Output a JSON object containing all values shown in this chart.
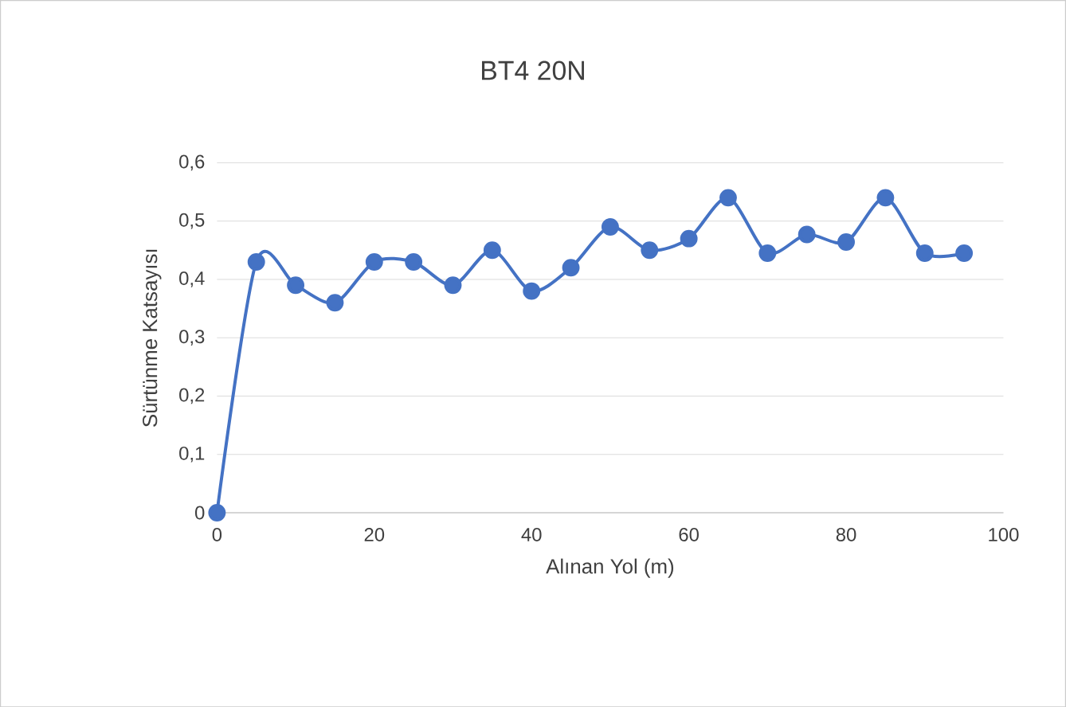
{
  "chart_data": {
    "type": "line",
    "title": "BT4 20N",
    "xlabel": "Alınan Yol (m)",
    "ylabel": "Sürtünme Katsayısı",
    "x": [
      0,
      5,
      10,
      15,
      20,
      25,
      30,
      35,
      40,
      45,
      50,
      55,
      60,
      65,
      70,
      75,
      80,
      85,
      90,
      95
    ],
    "series": [
      {
        "color": "#4472c4",
        "values": [
          0,
          0.43,
          0.39,
          0.36,
          0.43,
          0.43,
          0.39,
          0.45,
          0.38,
          0.42,
          0.49,
          0.45,
          0.47,
          0.54,
          0.445,
          0.477,
          0.464,
          0.54,
          0.445,
          0.445
        ]
      }
    ],
    "xlim": [
      0,
      100
    ],
    "xticks": [
      0,
      20,
      40,
      60,
      80,
      100
    ],
    "ylim": [
      0,
      0.6
    ],
    "yticks": [
      {
        "value": 0,
        "label": "0"
      },
      {
        "value": 0.1,
        "label": "0,1"
      },
      {
        "value": 0.2,
        "label": "0,2"
      },
      {
        "value": 0.3,
        "label": "0,3"
      },
      {
        "value": 0.4,
        "label": "0,4"
      },
      {
        "value": 0.5,
        "label": "0,5"
      },
      {
        "value": 0.6,
        "label": "0,6"
      }
    ],
    "grid": "y",
    "marker": "circle",
    "line_style": "solid"
  }
}
